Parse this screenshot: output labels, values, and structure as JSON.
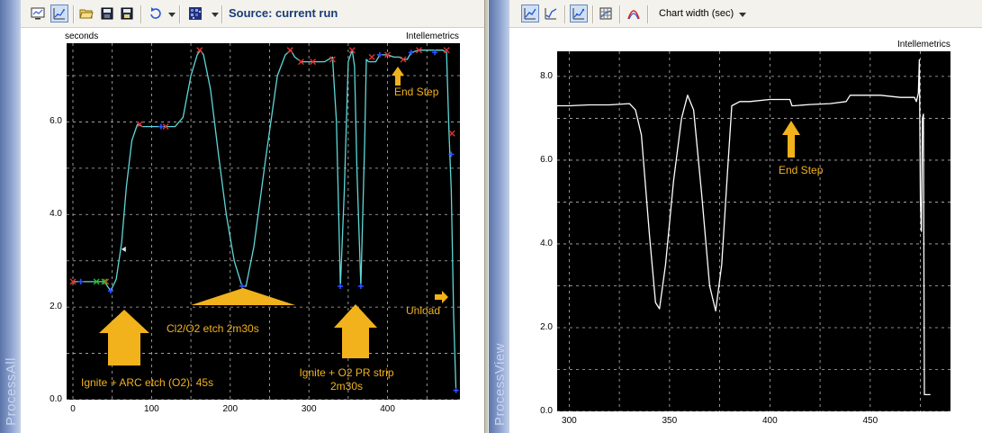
{
  "left_panel": {
    "side_label": "ProcessAll",
    "toolbar": {
      "source_label": "Source: current run",
      "icons": [
        "monitor-icon",
        "chart-zoom-icon",
        "open-folder-icon",
        "save-icon",
        "save-as-icon",
        "refresh-icon",
        "color-palette-icon"
      ]
    },
    "y_unit_label": "seconds",
    "brand": "Intellemetrics",
    "annotations": {
      "ignite_arc": "Ignite + ARC etch (O2): 45s",
      "cl2_o2": "Cl2/O2 etch 2m30s",
      "ignite_o2_line1": "Ignite + O2 PR strip",
      "ignite_o2_line2": "2m30s",
      "unload": "Unload",
      "end_step": "End Step"
    },
    "colors": {
      "trace": "#5fd7d7",
      "marker_x": "#e23030",
      "marker_plus": "#3050ff",
      "marker_green": "#1fc21f",
      "annotation": "#f2b21c"
    }
  },
  "right_panel": {
    "side_label": "ProcessView",
    "toolbar": {
      "chart_width_label": "Chart width (sec)",
      "icons": [
        "line-chart-icon",
        "line-chart-alt-icon",
        "scatter-chart-icon",
        "grid-chart-icon",
        "curve-fit-icon"
      ]
    },
    "brand": "Intellemetrics",
    "annotations": {
      "end_step": "End Step"
    },
    "colors": {
      "trace": "#ffffff",
      "annotation": "#f2b21c"
    }
  },
  "chart_data": [
    {
      "type": "line",
      "title": "",
      "xlabel": "",
      "ylabel": "seconds",
      "xlim": [
        -8,
        492
      ],
      "ylim": [
        0,
        7.7
      ],
      "x_ticks": [
        0,
        100,
        200,
        300,
        400
      ],
      "x_tick_labels": [
        "0",
        "100",
        "200",
        "300",
        "400"
      ],
      "y_ticks": [
        0,
        2,
        4,
        6
      ],
      "y_tick_labels": [
        "0.0",
        "2.0",
        "4.0",
        "6.0"
      ],
      "grid": true,
      "series": [
        {
          "x": [
            0,
            10,
            20,
            30,
            40,
            48,
            55,
            62,
            68,
            75,
            82,
            88,
            100,
            110,
            120,
            130,
            140,
            150,
            158,
            162,
            166,
            175,
            185,
            195,
            205,
            215,
            220,
            230,
            245,
            260,
            270,
            277,
            282,
            290,
            300,
            310,
            320,
            330,
            335,
            340,
            345,
            350,
            355,
            358,
            361,
            366,
            371,
            373,
            376,
            380,
            385,
            390,
            400,
            408,
            415,
            420,
            425,
            430,
            440,
            450,
            455,
            460,
            465,
            470,
            475,
            478,
            481,
            484,
            487
          ],
          "y": [
            2.55,
            2.55,
            2.55,
            2.55,
            2.55,
            2.35,
            2.6,
            3.4,
            4.6,
            5.6,
            5.95,
            5.9,
            5.9,
            5.9,
            5.9,
            5.9,
            6.1,
            7.0,
            7.45,
            7.55,
            7.45,
            6.7,
            5.3,
            4.0,
            3.0,
            2.45,
            2.45,
            3.3,
            5.2,
            7.0,
            7.45,
            7.55,
            7.4,
            7.3,
            7.3,
            7.3,
            7.3,
            7.4,
            6.0,
            2.45,
            4.5,
            7.3,
            7.55,
            7.2,
            5.0,
            2.45,
            5.6,
            7.35,
            7.3,
            7.3,
            7.3,
            7.45,
            7.45,
            7.4,
            7.4,
            7.35,
            7.35,
            7.5,
            7.55,
            7.55,
            7.55,
            7.55,
            7.55,
            7.55,
            7.5,
            5.8,
            4.5,
            1.8,
            0.2
          ]
        }
      ],
      "markers": {
        "x_marks": [
          [
            0,
            2.55
          ],
          [
            42,
            2.55
          ],
          [
            85,
            5.95
          ],
          [
            118,
            5.9
          ],
          [
            161,
            7.55
          ],
          [
            276,
            7.55
          ],
          [
            290,
            7.3
          ],
          [
            305,
            7.3
          ],
          [
            330,
            7.35
          ],
          [
            355,
            7.55
          ],
          [
            380,
            7.4
          ],
          [
            400,
            7.45
          ],
          [
            420,
            7.35
          ],
          [
            440,
            7.55
          ],
          [
            475,
            7.55
          ],
          [
            482,
            5.75
          ]
        ],
        "plus_marks": [
          [
            10,
            2.55
          ],
          [
            48,
            2.35
          ],
          [
            112,
            5.9
          ],
          [
            215,
            2.45
          ],
          [
            340,
            2.45
          ],
          [
            366,
            2.45
          ],
          [
            390,
            7.45
          ],
          [
            430,
            7.5
          ],
          [
            460,
            7.5
          ],
          [
            481,
            5.3
          ],
          [
            487,
            0.2
          ]
        ],
        "green_marks": [
          [
            30,
            2.55
          ],
          [
            40,
            2.55
          ]
        ],
        "arrow_mark": [
          65,
          3.25
        ]
      }
    },
    {
      "type": "line",
      "title": "",
      "xlabel": "",
      "ylabel": "",
      "xlim": [
        294,
        490
      ],
      "ylim": [
        0,
        8.6
      ],
      "x_ticks": [
        300,
        350,
        400,
        450
      ],
      "x_tick_labels": [
        "300",
        "350",
        "400",
        "450"
      ],
      "y_ticks": [
        0,
        2,
        4,
        6,
        8
      ],
      "y_tick_labels": [
        "0.0",
        "2.0",
        "4.0",
        "6.0",
        "8.0"
      ],
      "grid": true,
      "series": [
        {
          "x": [
            294,
            300,
            310,
            320,
            330,
            333,
            336,
            340,
            343,
            345,
            348,
            352,
            356,
            359,
            362,
            366,
            370,
            373,
            376,
            379,
            381,
            385,
            390,
            400,
            410,
            411,
            412,
            420,
            430,
            438,
            440,
            445,
            455,
            465,
            470,
            472,
            473,
            474,
            474.5,
            475,
            475.5,
            476,
            476.5,
            477,
            478,
            480
          ],
          "y": [
            7.3,
            7.3,
            7.32,
            7.32,
            7.35,
            7.2,
            6.6,
            4.2,
            2.6,
            2.45,
            3.5,
            5.5,
            7.0,
            7.55,
            7.2,
            5.2,
            3.0,
            2.4,
            3.5,
            5.8,
            7.3,
            7.4,
            7.4,
            7.45,
            7.45,
            7.3,
            7.3,
            7.33,
            7.35,
            7.4,
            7.55,
            7.55,
            7.55,
            7.5,
            7.5,
            7.5,
            7.4,
            7.6,
            8.4,
            5.0,
            4.3,
            7.0,
            7.1,
            0.4,
            0.4,
            0.4
          ]
        }
      ]
    }
  ]
}
